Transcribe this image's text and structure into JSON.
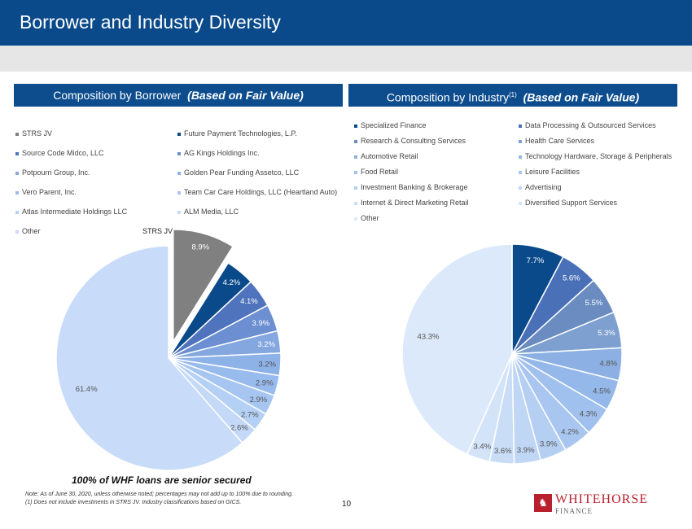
{
  "header": {
    "title": "Borrower and Industry Diversity"
  },
  "colors": {
    "header_bg": "#0a4a8a",
    "section_bg": "#0d4d8e",
    "accent_red": "#b8202d"
  },
  "left_section": {
    "title": "Composition by Borrower",
    "title_italic": "(Based on Fair Value)"
  },
  "right_section": {
    "title": "Composition by Industry",
    "superscript": "(1)",
    "title_italic": "(Based on Fair Value)"
  },
  "chart_data": [
    {
      "type": "pie",
      "title": "Composition by Borrower (Based on Fair Value)",
      "categories": [
        "STRS JV",
        "Future Payment Technologies, L.P.",
        "Source Code Midco, LLC",
        "AG Kings Holdings Inc.",
        "Potpourri Group, Inc.",
        "Golden Pear Funding Assetco, LLC",
        "Vero Parent, Inc.",
        "Team Car Care Holdings, LLC (Heartland Auto)",
        "Atlas Intermediate Holdings LLC",
        "ALM Media, LLC",
        "Other"
      ],
      "values": [
        8.9,
        4.2,
        4.1,
        3.9,
        3.2,
        3.2,
        2.9,
        2.9,
        2.7,
        2.6,
        61.4
      ],
      "labels": [
        "8.9%",
        "4.2%",
        "4.1%",
        "3.9%",
        "3.2%",
        "3.2%",
        "2.9%",
        "2.9%",
        "2.7%",
        "2.6%",
        "61.4%"
      ],
      "colors": [
        "#808080",
        "#0a4a8a",
        "#4f74bd",
        "#6b8fd0",
        "#84a7e0",
        "#8db2e8",
        "#98bbee",
        "#a6c5f1",
        "#b5d0f5",
        "#c3d9f7",
        "#c8dbf9"
      ],
      "exploded_label": "STRS JV",
      "legend_placement": "top"
    },
    {
      "type": "pie",
      "title": "Composition by Industry (Based on Fair Value)",
      "categories": [
        "Specialized Finance",
        "Data Processing & Outsourced Services",
        "Research & Consulting Services",
        "Health Care Services",
        "Automotive Retail",
        "Technology Hardware, Storage & Peripherals",
        "Food Retail",
        "Leisure Facilities",
        "Investment Banking & Brokerage",
        "Advertising",
        "Internet & Direct Marketing Retail",
        "Diversified Support Services",
        "Other"
      ],
      "values": [
        7.7,
        5.6,
        5.5,
        5.3,
        4.8,
        4.5,
        4.3,
        4.2,
        3.9,
        3.9,
        3.6,
        3.4,
        43.3
      ],
      "labels": [
        "7.7%",
        "5.6%",
        "5.5%",
        "5.3%",
        "4.8%",
        "4.5%",
        "4.3%",
        "4.2%",
        "3.9%",
        "3.9%",
        "3.6%",
        "3.4%",
        "43.3%"
      ],
      "colors": [
        "#0a4a8a",
        "#4a70b8",
        "#6a8cc0",
        "#7da0d0",
        "#8cb0e4",
        "#95b8ea",
        "#a0c0ee",
        "#a9c6f0",
        "#b5cff3",
        "#bfd6f5",
        "#c9ddf7",
        "#d3e3f8",
        "#dce9fa"
      ],
      "legend_placement": "top"
    }
  ],
  "footer": {
    "senior_secured": "100% of WHF loans are senior secured",
    "note1": "Note: As of June 30, 2020, unless otherwise noted; percentages may not add up to 100% due to rounding.",
    "note2": "(1)    Does not include investments in STRS  JV. Industry classifications based on GICS.",
    "page_number": "10"
  },
  "logo": {
    "name": "WHITEHORSE",
    "sub": "FINANCE"
  }
}
